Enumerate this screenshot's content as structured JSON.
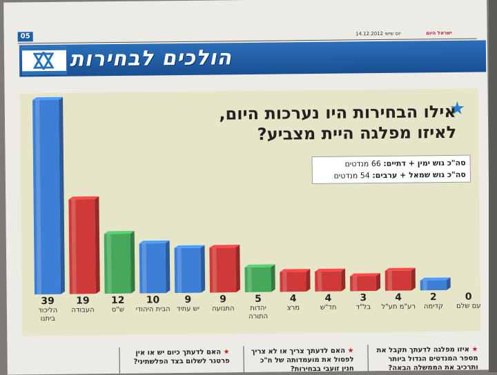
{
  "header": {
    "page_number": "05",
    "brand": "ישראל היום",
    "date": "יום שישי 14.12.2012",
    "title": "הולכים לבחירות"
  },
  "question": {
    "line1": "אילו הבחירות היו נערכות היום,",
    "line2": "לאיזו מפלגה היית מצביע?"
  },
  "totals": {
    "right_label": "סה\"כ גוש ימין + דתיים:",
    "right_value": "66 מנדטים",
    "left_label": "סה\"כ גוש שמאל + ערבים:",
    "left_value": "54 מנדטים"
  },
  "chart_data": {
    "type": "bar",
    "categories": [
      "הליכוד ביתנו",
      "העבודה",
      "ש\"ס",
      "הבית היהודי",
      "יש עתיד",
      "התנועה",
      "יהדות התורה",
      "מרצ",
      "חד\"ש",
      "בל\"ד",
      "רע\"מ תע\"ל",
      "קדימה",
      "עם שלם"
    ],
    "values": [
      39,
      19,
      12,
      10,
      9,
      9,
      5,
      4,
      4,
      3,
      4,
      2,
      0
    ],
    "colors": [
      "#3d7fd6",
      "#cf3a39",
      "#46a85b",
      "#3d7fd6",
      "#3d7fd6",
      "#cf3a39",
      "#46a85b",
      "#cf3a39",
      "#cf3a39",
      "#cf3a39",
      "#cf3a39",
      "#3d7fd6",
      "#3d7fd6"
    ],
    "ylim": [
      0,
      39
    ],
    "grid": false,
    "legend": "none"
  },
  "footer": {
    "q1": "איזו מפלגה לדעתך תקבל את מספר המנדטים הגדול ביותר ותרכיב את הממשלה הבאה?",
    "q2": "האם לדעתך צריך או לא צריך לפסול את מועמדותה של ח\"כ חנין זועבי בבחירות?",
    "q3": "האם לדעתך כיום יש או אין פרטנר לשלום בצד הפלשתיני?"
  }
}
